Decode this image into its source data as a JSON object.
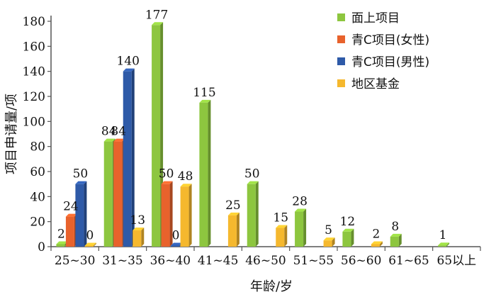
{
  "chart_data": {
    "type": "bar",
    "xlabel": "年龄/岁",
    "ylabel": "项目申请量/项",
    "ylim": [
      0,
      180
    ],
    "yticks": [
      0,
      20,
      40,
      60,
      80,
      100,
      120,
      140,
      160,
      180
    ],
    "categories": [
      "25~30",
      "31~35",
      "36~40",
      "41~45",
      "46~50",
      "51~55",
      "56~60",
      "61~65",
      "65以上"
    ],
    "legend_position": "top-right",
    "grid": false,
    "series": [
      {
        "name": "面上项目",
        "color": "#8dc63f",
        "values": [
          2,
          84,
          177,
          115,
          50,
          28,
          12,
          8,
          1
        ]
      },
      {
        "name": "青C项目(女性)",
        "color": "#e8622c",
        "values": [
          24,
          84,
          50,
          null,
          null,
          null,
          null,
          null,
          null
        ]
      },
      {
        "name": "青C项目(男性)",
        "color": "#2e5aa8",
        "values": [
          50,
          140,
          0,
          null,
          null,
          null,
          null,
          null,
          null
        ]
      },
      {
        "name": "地区基金",
        "color": "#f5b82e",
        "values": [
          0,
          13,
          48,
          25,
          15,
          5,
          2,
          null,
          null
        ]
      }
    ]
  }
}
